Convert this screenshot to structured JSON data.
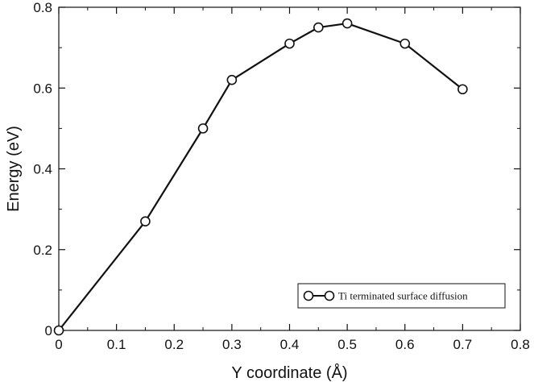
{
  "chart_data": {
    "type": "line",
    "title": "",
    "xlabel": "Y coordinate (Å)",
    "ylabel": "Energy (eV)",
    "xlim": [
      0,
      0.8
    ],
    "ylim": [
      0,
      0.8
    ],
    "xticks": [
      0,
      0.1,
      0.2,
      0.3,
      0.4,
      0.5,
      0.6,
      0.7,
      0.8
    ],
    "yticks": [
      0,
      0.2,
      0.4,
      0.6,
      0.8
    ],
    "xtick_labels": [
      "0",
      "0.1",
      "0.2",
      "0.3",
      "0.4",
      "0.5",
      "0.6",
      "0.7",
      "0.8"
    ],
    "ytick_labels": [
      "0",
      "0.2",
      "0.4",
      "0.6",
      "0.8"
    ],
    "grid": false,
    "legend_position": "bottom-right",
    "series": [
      {
        "name": "Ti terminated surface diffusion",
        "marker": "open-circle",
        "color": "#111111",
        "x": [
          0,
          0.15,
          0.25,
          0.3,
          0.4,
          0.45,
          0.5,
          0.6,
          0.7
        ],
        "y": [
          0,
          0.27,
          0.5,
          0.62,
          0.71,
          0.75,
          0.76,
          0.71,
          0.597
        ]
      }
    ]
  }
}
